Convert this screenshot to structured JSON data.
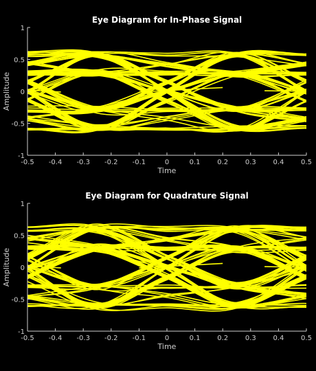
{
  "colors": {
    "background": "#000000",
    "trace": "#ffff00",
    "axis": "#cfcfcf",
    "title": "#ffffff"
  },
  "chart_data": [
    {
      "type": "line",
      "title": "Eye Diagram for In-Phase Signal",
      "xlabel": "Time",
      "ylabel": "Amplitude",
      "xlim": [
        -0.5,
        0.5
      ],
      "ylim": [
        -1,
        1
      ],
      "xticks": [
        -0.5,
        -0.4,
        -0.3,
        -0.2,
        -0.1,
        0,
        0.1,
        0.2,
        0.3,
        0.4,
        0.5
      ],
      "xtick_labels": [
        "-0.5",
        "-0.4",
        "-0.3",
        "-0.2",
        "-0.1",
        "0",
        "0.1",
        "0.2",
        "0.3",
        "0.4",
        "0.5"
      ],
      "yticks": [
        -1,
        -0.5,
        0,
        0.5,
        1
      ],
      "ytick_labels": [
        "-1",
        "-0.5",
        "0",
        "0.5",
        "1"
      ],
      "grid": false,
      "eye": {
        "symbol_levels": [
          0.58,
          0.28,
          -0.28,
          -0.58
        ],
        "spread": 0.1,
        "crossing_level": 0.5,
        "peak_times": [
          -0.25,
          0.25
        ],
        "crossing_times": [
          -0.5,
          0,
          0.5
        ]
      }
    },
    {
      "type": "line",
      "title": "Eye Diagram for Quadrature Signal",
      "xlabel": "Time",
      "ylabel": "Amplitude",
      "xlim": [
        -0.5,
        0.5
      ],
      "ylim": [
        -1,
        1
      ],
      "xticks": [
        -0.5,
        -0.4,
        -0.3,
        -0.2,
        -0.1,
        0,
        0.1,
        0.2,
        0.3,
        0.4,
        0.5
      ],
      "xtick_labels": [
        "-0.5",
        "-0.4",
        "-0.3",
        "-0.2",
        "-0.1",
        "0",
        "0.1",
        "0.2",
        "0.3",
        "0.4",
        "0.5"
      ],
      "yticks": [
        -1,
        -0.5,
        0,
        0.5,
        1
      ],
      "ytick_labels": [
        "-1",
        "-0.5",
        "0",
        "0.5",
        "1"
      ],
      "grid": false,
      "eye": {
        "symbol_levels": [
          0.6,
          0.3,
          -0.3,
          -0.6
        ],
        "spread": 0.12,
        "crossing_level": 0.42,
        "peak_times": [
          -0.25,
          0.25
        ],
        "crossing_times": [
          -0.5,
          0,
          0.5
        ]
      }
    }
  ]
}
